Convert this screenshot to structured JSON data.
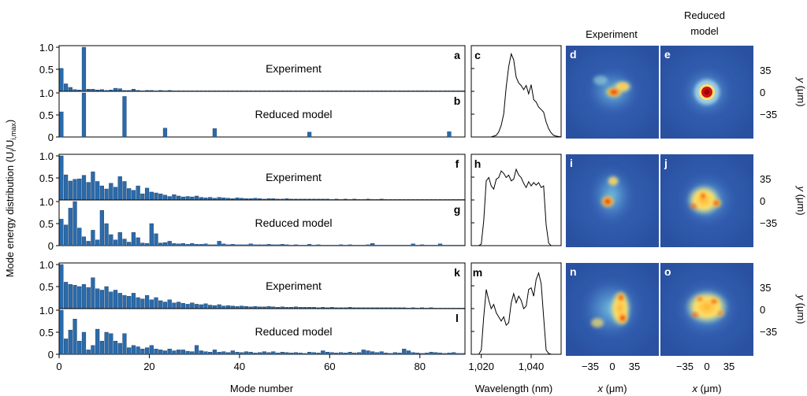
{
  "figure": {
    "ylabel": "Mode energy distribution (U",
    "ylabel_sub": "i",
    "ylabel_mid": "/U",
    "ylabel_sub2": "i,max",
    "ylabel_end": ")"
  },
  "colors": {
    "bar": "#2a6bab",
    "bar_edge": "#17375e",
    "axis": "#000000",
    "spectrum": "#000000"
  },
  "chart_data": [
    {
      "type": "bar",
      "panel": "a",
      "annotation": "Experiment",
      "xlim": [
        0,
        90
      ],
      "ylim": [
        0,
        1.0
      ],
      "yticks": [
        "0.5",
        "1.0"
      ],
      "values": [
        0.52,
        0.17,
        0.09,
        0.04,
        0.03,
        1.0,
        0.05,
        0.05,
        0.03,
        0.04,
        0.02,
        0.03,
        0.07,
        0.06,
        0.02,
        0.02,
        0.05,
        0.02,
        0.01,
        0.02,
        0.02,
        0.01,
        0.02,
        0.01,
        0.02,
        0.01,
        0.01,
        0.01,
        0.01,
        0.01,
        0.01,
        0.01,
        0.01,
        0.01,
        0.01,
        0.01,
        0.01,
        0.01,
        0.01,
        0.01,
        0.01,
        0.01,
        0.01,
        0.01,
        0.01,
        0.01,
        0.01,
        0.01,
        0.01,
        0.01,
        0.01,
        0.01,
        0.01,
        0.01,
        0.01,
        0.01,
        0.01,
        0.01,
        0.01,
        0.01,
        0.01,
        0.01,
        0.01,
        0.01,
        0.01,
        0.01,
        0.01,
        0.01,
        0.01,
        0.01,
        0.01,
        0.01,
        0.01,
        0.01,
        0.01,
        0.01,
        0.01,
        0.01,
        0.01,
        0.01,
        0.01,
        0.01,
        0.01,
        0.01,
        0.01,
        0.01,
        0.01,
        0.01,
        0.01,
        0.01
      ]
    },
    {
      "type": "bar",
      "panel": "b",
      "annotation": "Reduced model",
      "xlim": [
        0,
        90
      ],
      "ylim": [
        0,
        1.0
      ],
      "yticks": [
        "0",
        "0.5",
        "1.0"
      ],
      "values": [
        0.57,
        0,
        0,
        0,
        0,
        1.0,
        0,
        0,
        0,
        0,
        0,
        0,
        0,
        0,
        0.92,
        0,
        0,
        0,
        0,
        0,
        0,
        0,
        0,
        0.2,
        0,
        0,
        0,
        0,
        0,
        0,
        0,
        0,
        0,
        0,
        0.19,
        0,
        0,
        0,
        0,
        0,
        0,
        0,
        0,
        0,
        0,
        0,
        0,
        0,
        0,
        0,
        0,
        0,
        0,
        0,
        0,
        0.11,
        0,
        0,
        0,
        0,
        0,
        0,
        0,
        0,
        0,
        0,
        0,
        0,
        0,
        0,
        0,
        0,
        0,
        0,
        0,
        0,
        0,
        0,
        0,
        0,
        0,
        0,
        0,
        0,
        0,
        0,
        0.12,
        0,
        0,
        0
      ]
    },
    {
      "type": "bar",
      "panel": "f",
      "annotation": "Experiment",
      "xlim": [
        0,
        90
      ],
      "ylim": [
        0,
        1.0
      ],
      "yticks": [
        "0.5",
        "1.0"
      ],
      "values": [
        1.0,
        0.57,
        0.43,
        0.47,
        0.48,
        0.56,
        0.4,
        0.64,
        0.42,
        0.32,
        0.25,
        0.38,
        0.29,
        0.53,
        0.42,
        0.26,
        0.22,
        0.32,
        0.14,
        0.27,
        0.18,
        0.16,
        0.14,
        0.11,
        0.08,
        0.12,
        0.09,
        0.07,
        0.08,
        0.07,
        0.09,
        0.06,
        0.05,
        0.06,
        0.04,
        0.06,
        0.05,
        0.04,
        0.03,
        0.05,
        0.04,
        0.03,
        0.03,
        0.04,
        0.03,
        0.02,
        0.03,
        0.03,
        0.02,
        0.02,
        0.03,
        0.02,
        0.02,
        0.02,
        0.02,
        0.02,
        0.02,
        0.02,
        0.02,
        0.02,
        0.01,
        0.02,
        0.01,
        0.02,
        0.01,
        0.02,
        0.01,
        0.01,
        0.02,
        0.01,
        0.01,
        0.02,
        0.01,
        0.01,
        0.01,
        0.01,
        0.01,
        0.01,
        0.01,
        0.01,
        0.01,
        0.01,
        0.01,
        0.01,
        0.01,
        0.01,
        0.01,
        0.01,
        0.01,
        0.01
      ]
    },
    {
      "type": "bar",
      "panel": "g",
      "annotation": "Reduced model",
      "xlim": [
        0,
        90
      ],
      "ylim": [
        0,
        1.0
      ],
      "yticks": [
        "0",
        "0.5",
        "1.0"
      ],
      "values": [
        0.6,
        0.47,
        0.85,
        1.0,
        0.4,
        0.2,
        0.1,
        0.35,
        0.13,
        0.8,
        0.5,
        0.25,
        0.13,
        0.3,
        0.15,
        0.08,
        0.3,
        0.18,
        0.06,
        0.05,
        0.5,
        0.27,
        0.06,
        0.07,
        0.1,
        0.05,
        0.04,
        0.05,
        0.03,
        0.05,
        0.03,
        0.03,
        0.04,
        0.02,
        0.02,
        0.1,
        0.04,
        0.02,
        0.03,
        0.02,
        0.02,
        0.02,
        0.04,
        0.02,
        0.02,
        0.02,
        0.03,
        0.02,
        0.02,
        0.03,
        0.02,
        0.01,
        0.02,
        0.01,
        0.01,
        0.03,
        0.01,
        0.02,
        0.01,
        0.01,
        0.01,
        0.01,
        0.02,
        0.01,
        0.02,
        0.01,
        0.01,
        0.01,
        0.02,
        0.05,
        0.01,
        0.01,
        0.01,
        0.01,
        0.01,
        0.01,
        0.01,
        0.01,
        0.04,
        0.01,
        0.02,
        0.01,
        0.01,
        0.01,
        0.04,
        0.01,
        0.01,
        0.01,
        0.01,
        0.01
      ]
    },
    {
      "type": "bar",
      "panel": "k",
      "annotation": "Experiment",
      "xlim": [
        0,
        90
      ],
      "ylim": [
        0,
        1.0
      ],
      "yticks": [
        "0.5",
        "1.0"
      ],
      "values": [
        1.0,
        0.6,
        0.55,
        0.53,
        0.5,
        0.55,
        0.48,
        0.7,
        0.45,
        0.42,
        0.5,
        0.38,
        0.42,
        0.35,
        0.3,
        0.28,
        0.35,
        0.25,
        0.22,
        0.3,
        0.2,
        0.25,
        0.18,
        0.15,
        0.2,
        0.13,
        0.15,
        0.12,
        0.1,
        0.13,
        0.1,
        0.09,
        0.11,
        0.08,
        0.07,
        0.09,
        0.06,
        0.07,
        0.06,
        0.05,
        0.06,
        0.05,
        0.04,
        0.05,
        0.04,
        0.04,
        0.05,
        0.04,
        0.03,
        0.04,
        0.03,
        0.03,
        0.04,
        0.03,
        0.03,
        0.03,
        0.03,
        0.02,
        0.03,
        0.02,
        0.03,
        0.02,
        0.02,
        0.02,
        0.03,
        0.02,
        0.02,
        0.02,
        0.02,
        0.02,
        0.02,
        0.02,
        0.02,
        0.02,
        0.02,
        0.02,
        0.02,
        0.01,
        0.02,
        0.01,
        0.02,
        0.01,
        0.02,
        0.01,
        0.01,
        0.01,
        0.01,
        0.01,
        0.01,
        0.01
      ]
    },
    {
      "type": "bar",
      "panel": "l",
      "annotation": "Reduced model",
      "xlim": [
        0,
        90
      ],
      "ylim": [
        0,
        1.0
      ],
      "yticks": [
        "0",
        "0.5",
        "1.0"
      ],
      "values": [
        1.0,
        0.35,
        0.55,
        0.8,
        0.3,
        0.5,
        0.1,
        0.2,
        0.57,
        0.3,
        0.5,
        0.47,
        0.3,
        0.25,
        0.47,
        0.15,
        0.2,
        0.17,
        0.12,
        0.15,
        0.2,
        0.12,
        0.1,
        0.08,
        0.12,
        0.08,
        0.1,
        0.1,
        0.07,
        0.06,
        0.2,
        0.08,
        0.06,
        0.05,
        0.1,
        0.05,
        0.06,
        0.04,
        0.08,
        0.05,
        0.04,
        0.06,
        0.05,
        0.03,
        0.04,
        0.06,
        0.04,
        0.06,
        0.03,
        0.05,
        0.04,
        0.03,
        0.04,
        0.03,
        0.02,
        0.05,
        0.04,
        0.03,
        0.08,
        0.05,
        0.04,
        0.03,
        0.04,
        0.03,
        0.05,
        0.03,
        0.04,
        0.1,
        0.08,
        0.06,
        0.04,
        0.06,
        0.03,
        0.02,
        0.04,
        0.03,
        0.12,
        0.08,
        0.04,
        0.03,
        0.02,
        0.03,
        0.05,
        0.04,
        0.03,
        0.02,
        0.03,
        0.04,
        0.02,
        0.02
      ]
    },
    {
      "type": "line",
      "panel": "c",
      "xlim": [
        1016,
        1052
      ],
      "ylim": [
        0,
        1.1
      ],
      "x": [
        1016,
        1022,
        1024,
        1025,
        1026,
        1027,
        1028,
        1029,
        1030,
        1031,
        1032,
        1033,
        1034,
        1035,
        1036,
        1037,
        1038,
        1039,
        1040,
        1041,
        1042,
        1043,
        1044,
        1045,
        1046,
        1047,
        1048,
        1049,
        1050,
        1052
      ],
      "y": [
        0,
        0,
        0,
        0.01,
        0.02,
        0.06,
        0.14,
        0.28,
        0.6,
        0.85,
        1.0,
        0.93,
        0.72,
        0.65,
        0.62,
        0.57,
        0.62,
        0.52,
        0.63,
        0.45,
        0.42,
        0.36,
        0.33,
        0.3,
        0.18,
        0.1,
        0.05,
        0.02,
        0.01,
        0
      ]
    },
    {
      "type": "line",
      "panel": "h",
      "xlim": [
        1016,
        1052
      ],
      "ylim": [
        0,
        1.1
      ],
      "x": [
        1016,
        1019,
        1020,
        1021,
        1022,
        1023,
        1024,
        1025,
        1026,
        1027,
        1028,
        1029,
        1030,
        1031,
        1032,
        1033,
        1034,
        1035,
        1036,
        1037,
        1038,
        1039,
        1040,
        1041,
        1042,
        1043,
        1044,
        1045,
        1046,
        1047,
        1048,
        1052
      ],
      "y": [
        0,
        0,
        0.02,
        0.3,
        0.78,
        0.82,
        0.72,
        0.68,
        0.8,
        0.82,
        0.9,
        0.87,
        0.82,
        0.85,
        0.78,
        0.8,
        0.92,
        0.85,
        0.82,
        0.75,
        0.7,
        0.77,
        0.72,
        0.76,
        0.73,
        0.76,
        0.7,
        0.72,
        0.25,
        0.03,
        0,
        0
      ]
    },
    {
      "type": "line",
      "panel": "m",
      "xlim": [
        1016,
        1052
      ],
      "ylim": [
        0,
        1.1
      ],
      "x": [
        1016,
        1019,
        1020,
        1021,
        1022,
        1023,
        1024,
        1025,
        1026,
        1027,
        1028,
        1029,
        1030,
        1031,
        1032,
        1033,
        1034,
        1035,
        1036,
        1037,
        1038,
        1039,
        1040,
        1041,
        1042,
        1043,
        1044,
        1045,
        1046,
        1047,
        1048,
        1052
      ],
      "y": [
        0,
        0,
        0.05,
        0.45,
        0.78,
        0.65,
        0.55,
        0.6,
        0.5,
        0.45,
        0.4,
        0.45,
        0.35,
        0.38,
        0.62,
        0.73,
        0.62,
        0.7,
        0.65,
        0.55,
        0.58,
        0.78,
        0.8,
        0.7,
        0.9,
        0.98,
        0.85,
        0.45,
        0.05,
        0.01,
        0,
        0
      ]
    }
  ],
  "labels": {
    "a": "a",
    "b": "b",
    "c": "c",
    "d": "d",
    "e": "e",
    "f": "f",
    "g": "g",
    "h": "h",
    "i": "i",
    "j": "j",
    "k": "k",
    "l": "l",
    "m": "m",
    "n": "n",
    "o": "o"
  },
  "bar_axis": {
    "ticks": [
      "0",
      "20",
      "40",
      "60",
      "80"
    ],
    "label": "Mode number"
  },
  "spectrum_axis": {
    "ticks": [
      "1,020",
      "1,040"
    ],
    "label": "Wavelength (nm)"
  },
  "image_cols": {
    "experiment": "Experiment",
    "model_line1": "Reduced",
    "model_line2": "model"
  },
  "image_axis": {
    "x_ticks": [
      "−35",
      "0",
      "35"
    ],
    "y_ticks": [
      "35",
      "0",
      "−35"
    ],
    "x_label_var": "x",
    "x_label_unit": " (μm)",
    "y_label_var": "y",
    "y_label_unit": " (μm)"
  }
}
